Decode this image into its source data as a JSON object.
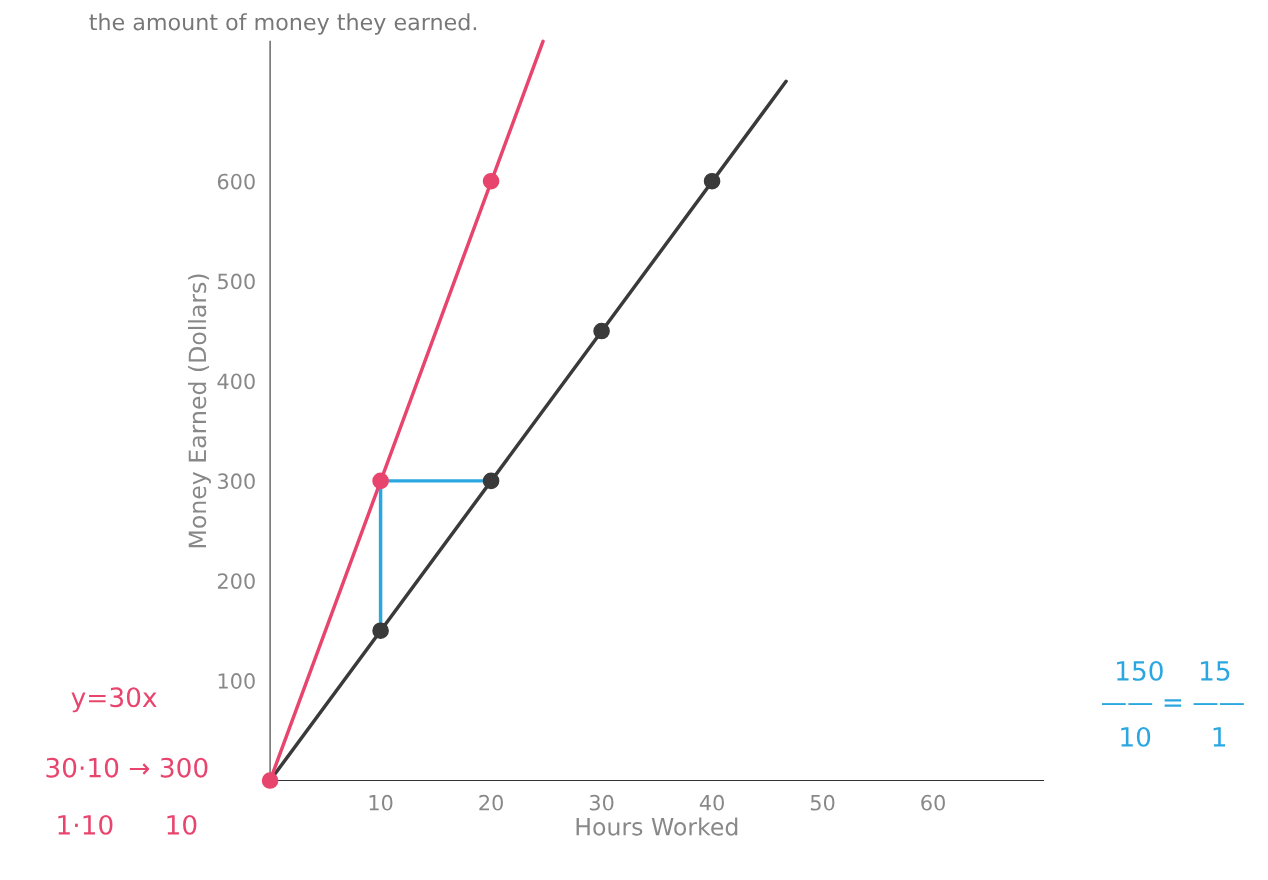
{
  "chart_data": {
    "type": "line",
    "title": "the amount of money they earned.",
    "xlabel": "Hours Worked",
    "ylabel": "Money Earned (Dollars)",
    "xlim": [
      0,
      70
    ],
    "ylim": [
      0,
      740
    ],
    "xticks": [
      10,
      20,
      30,
      40,
      50,
      60
    ],
    "yticks": [
      100,
      200,
      300,
      400,
      500,
      600
    ],
    "grid": false,
    "series": [
      {
        "color": "#3a3a3a",
        "x": [
          0,
          46.7
        ],
        "values": [
          0,
          700
        ],
        "marker": "none"
      },
      {
        "color": "#3a3a3a",
        "x": [
          10,
          20,
          30,
          40
        ],
        "values": [
          150,
          300,
          450,
          600
        ],
        "marker": "circle",
        "type": "scatter"
      },
      {
        "color": "#e8456e",
        "x": [
          0,
          24.7
        ],
        "values": [
          0,
          740
        ],
        "marker": "none"
      },
      {
        "color": "#e8456e",
        "x": [
          0,
          10,
          20
        ],
        "values": [
          0,
          300,
          600
        ],
        "marker": "circle",
        "type": "scatter"
      },
      {
        "color": "#2aa7e0",
        "x": [
          20,
          10,
          10
        ],
        "values": [
          300,
          300,
          150
        ],
        "marker": "none"
      }
    ],
    "annotations": [
      "y=30x",
      "30·10 → 300",
      "1·10      10",
      "150    15",
      "—— = ——",
      "10       1"
    ]
  }
}
